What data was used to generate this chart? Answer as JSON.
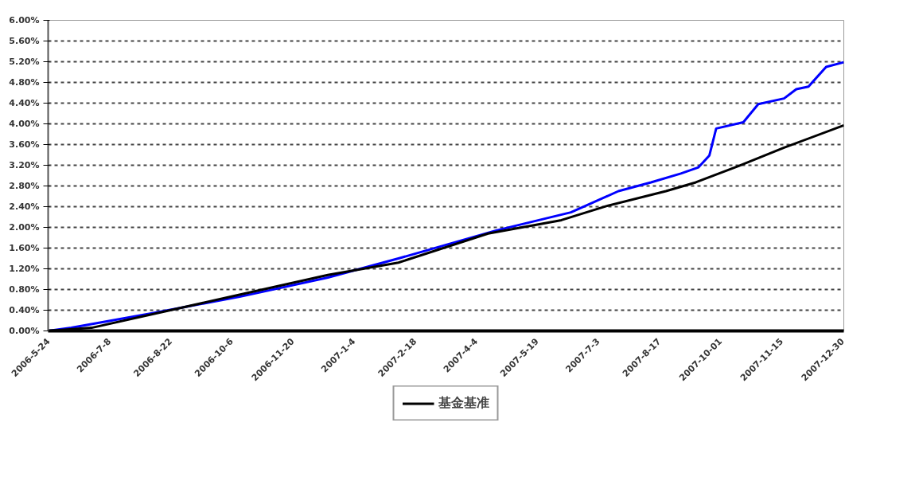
{
  "chart_data": {
    "type": "line",
    "xlim": [
      "2006-05-24",
      "2007-12-31"
    ],
    "xticks": [
      {
        "value": "2006-05-24",
        "label": "2006-5-24"
      },
      {
        "value": "2006-07-08",
        "label": "2006-7-8"
      },
      {
        "value": "2006-08-22",
        "label": "2006-8-22"
      },
      {
        "value": "2006-10-06",
        "label": "2006-10-6"
      },
      {
        "value": "2006-11-20",
        "label": "2006-11-20"
      },
      {
        "value": "2007-01-04",
        "label": "2007-1-4"
      },
      {
        "value": "2007-02-18",
        "label": "2007-2-18"
      },
      {
        "value": "2007-04-04",
        "label": "2007-4-4"
      },
      {
        "value": "2007-05-19",
        "label": "2007-5-19"
      },
      {
        "value": "2007-07-03",
        "label": "2007-7-3"
      },
      {
        "value": "2007-08-17",
        "label": "2007-8-17"
      },
      {
        "value": "2007-10-01",
        "label": "2007-10-01"
      },
      {
        "value": "2007-11-15",
        "label": "2007-11-15"
      },
      {
        "value": "2007-12-30",
        "label": "2007-12-30"
      }
    ],
    "ylim": [
      0,
      6
    ],
    "yticks": [
      {
        "value": 0,
        "label": "0.00%"
      },
      {
        "value": 0.4,
        "label": "0.40%"
      },
      {
        "value": 0.8,
        "label": "0.80%"
      },
      {
        "value": 1.2,
        "label": "1.20%"
      },
      {
        "value": 1.6,
        "label": "1.60%"
      },
      {
        "value": 2.0,
        "label": "2.00%"
      },
      {
        "value": 2.4,
        "label": "2.40%"
      },
      {
        "value": 2.8,
        "label": "2.80%"
      },
      {
        "value": 3.2,
        "label": "3.20%"
      },
      {
        "value": 3.6,
        "label": "3.60%"
      },
      {
        "value": 4.0,
        "label": "4.00%"
      },
      {
        "value": 4.4,
        "label": "4.40%"
      },
      {
        "value": 4.8,
        "label": "4.80%"
      },
      {
        "value": 5.2,
        "label": "5.20%"
      },
      {
        "value": 5.6,
        "label": "5.60%"
      },
      {
        "value": 6.0,
        "label": "6.00%"
      }
    ],
    "grid": "y",
    "legend": "bottom",
    "marker": "none",
    "line_style": "solid",
    "series": [
      {
        "color": "#0000ff",
        "x": [
          "2006-05-24",
          "2006-06-10",
          "2006-08-08",
          "2006-10-12",
          "2006-12-16",
          "2007-02-06",
          "2007-04-19",
          "2007-06-13",
          "2007-07-18",
          "2007-08-11",
          "2007-09-02",
          "2007-09-15",
          "2007-09-23",
          "2007-09-28",
          "2007-10-18",
          "2007-10-29",
          "2007-11-17",
          "2007-11-26",
          "2007-12-05",
          "2007-12-18",
          "2007-12-31"
        ],
        "values": [
          0,
          0.06,
          0.34,
          0.66,
          1.03,
          1.4,
          1.94,
          2.29,
          2.7,
          2.87,
          3.04,
          3.16,
          3.39,
          3.91,
          4.03,
          4.38,
          4.49,
          4.67,
          4.72,
          5.1,
          5.19
        ]
      },
      {
        "name": "基金基准",
        "color": "#000000",
        "x": [
          "2006-05-24",
          "2006-06-25",
          "2006-10-12",
          "2006-12-16",
          "2007-02-06",
          "2007-04-13",
          "2007-06-06",
          "2007-07-09",
          "2007-08-22",
          "2007-09-13",
          "2007-10-15",
          "2007-11-17",
          "2007-12-31"
        ],
        "values": [
          0,
          0.06,
          0.7,
          1.08,
          1.32,
          1.88,
          2.14,
          2.41,
          2.7,
          2.87,
          3.19,
          3.54,
          3.97
        ]
      }
    ]
  }
}
